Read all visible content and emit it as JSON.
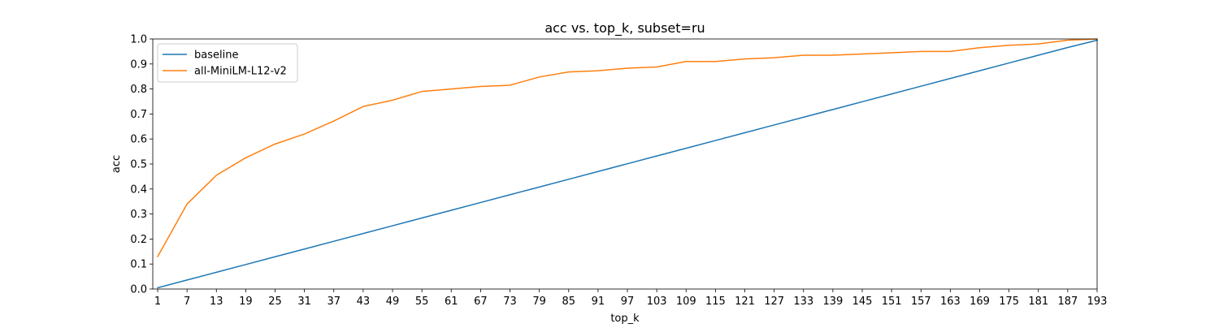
{
  "chart_data": {
    "type": "line",
    "title": "acc vs. top_k, subset=ru",
    "xlabel": "top_k",
    "ylabel": "acc",
    "xlim": [
      0,
      193
    ],
    "ylim": [
      0,
      1
    ],
    "x_ticks": [
      1,
      7,
      13,
      19,
      25,
      31,
      37,
      43,
      49,
      55,
      61,
      67,
      73,
      79,
      85,
      91,
      97,
      103,
      109,
      115,
      121,
      127,
      133,
      139,
      145,
      151,
      157,
      163,
      169,
      175,
      181,
      187,
      193
    ],
    "y_ticks": [
      "0.0",
      "0.1",
      "0.2",
      "0.3",
      "0.4",
      "0.5",
      "0.6",
      "0.7",
      "0.8",
      "0.9",
      "1.0"
    ],
    "x": [
      1,
      7,
      13,
      19,
      25,
      31,
      37,
      43,
      49,
      55,
      61,
      67,
      73,
      79,
      85,
      91,
      97,
      103,
      109,
      115,
      121,
      127,
      133,
      139,
      145,
      151,
      157,
      163,
      169,
      175,
      181,
      187,
      193
    ],
    "legend_position": "upper-left",
    "grid": false,
    "series": [
      {
        "name": "baseline",
        "color": "#1f77b4",
        "values": [
          0.005,
          0.036,
          0.067,
          0.098,
          0.129,
          0.16,
          0.191,
          0.222,
          0.253,
          0.284,
          0.315,
          0.346,
          0.377,
          0.408,
          0.439,
          0.47,
          0.501,
          0.532,
          0.563,
          0.594,
          0.625,
          0.656,
          0.687,
          0.718,
          0.749,
          0.78,
          0.811,
          0.842,
          0.873,
          0.904,
          0.935,
          0.966,
          0.995
        ]
      },
      {
        "name": "all-MiniLM-L12-v2",
        "color": "#ff7f0e",
        "values": [
          0.13,
          0.34,
          0.455,
          0.525,
          0.58,
          0.62,
          0.672,
          0.73,
          0.755,
          0.79,
          0.8,
          0.81,
          0.815,
          0.848,
          0.868,
          0.873,
          0.883,
          0.888,
          0.91,
          0.91,
          0.92,
          0.925,
          0.935,
          0.935,
          0.94,
          0.945,
          0.95,
          0.95,
          0.965,
          0.975,
          0.98,
          0.995,
          1.0
        ]
      }
    ]
  }
}
